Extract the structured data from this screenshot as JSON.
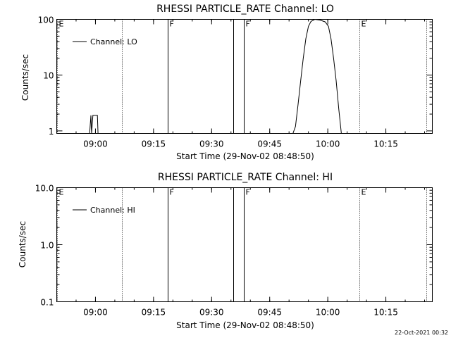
{
  "footer": {
    "timestamp": "22-Oct-2021 00:32"
  },
  "chart_data": [
    {
      "type": "line",
      "title": "RHESSI PARTICLE_RATE Channel: LO",
      "xlabel": "Start Time (29-Nov-02 08:48:50)",
      "ylabel": "Counts/sec",
      "yscale": "log",
      "ylim": [
        0.9,
        100
      ],
      "xlim": [
        "08:50:00",
        "10:27:00"
      ],
      "x_ticks": [
        "09:00",
        "09:15",
        "09:30",
        "09:45",
        "10:00",
        "10:15"
      ],
      "y_ticks": [
        "1",
        "10",
        "100"
      ],
      "legend": {
        "entries": [
          "Channel: LO"
        ],
        "placement": "top-left"
      },
      "markers": [
        {
          "time": "08:50:00",
          "style": "dotted",
          "flag": "E"
        },
        {
          "time": "09:06:45",
          "style": "dotted",
          "flag": ""
        },
        {
          "time": "09:18:45",
          "style": "solid",
          "flag": "F"
        },
        {
          "time": "09:35:30",
          "style": "solid",
          "flag": ""
        },
        {
          "time": "09:38:15",
          "style": "solid",
          "flag": "F"
        },
        {
          "time": "10:08:15",
          "style": "dotted",
          "flag": "E"
        },
        {
          "time": "10:25:30",
          "style": "dotted",
          "flag": ""
        }
      ],
      "segments": [
        [
          [
            "08:58:30",
            0.85
          ],
          [
            "08:58:50",
            1.9
          ],
          [
            "08:59:00",
            0.9
          ],
          [
            "08:59:20",
            1.9
          ],
          [
            "09:00:30",
            1.9
          ],
          [
            "09:00:40",
            0.85
          ]
        ],
        [
          [
            "09:51:00",
            0.85
          ],
          [
            "09:51:40",
            1.2
          ],
          [
            "09:52:20",
            3
          ],
          [
            "09:53:00",
            8
          ],
          [
            "09:53:40",
            20
          ],
          [
            "09:54:20",
            45
          ],
          [
            "09:55:00",
            75
          ],
          [
            "09:55:40",
            92
          ],
          [
            "09:56:40",
            100
          ],
          [
            "09:58:00",
            97
          ],
          [
            "09:59:20",
            90
          ],
          [
            "10:00:10",
            75
          ],
          [
            "10:00:50",
            45
          ],
          [
            "10:01:30",
            20
          ],
          [
            "10:02:10",
            8
          ],
          [
            "10:02:50",
            2.5
          ],
          [
            "10:03:30",
            0.85
          ]
        ]
      ]
    },
    {
      "type": "line",
      "title": "RHESSI PARTICLE_RATE Channel: HI",
      "xlabel": "Start Time (29-Nov-02 08:48:50)",
      "ylabel": "Counts/sec",
      "yscale": "log",
      "ylim": [
        0.1,
        10
      ],
      "xlim": [
        "08:50:00",
        "10:27:00"
      ],
      "x_ticks": [
        "09:00",
        "09:15",
        "09:30",
        "09:45",
        "10:00",
        "10:15"
      ],
      "y_ticks": [
        "0.1",
        "1.0",
        "10.0"
      ],
      "legend": {
        "entries": [
          "Channel: HI"
        ],
        "placement": "top-left"
      },
      "markers": [
        {
          "time": "08:50:00",
          "style": "dotted",
          "flag": "E"
        },
        {
          "time": "09:06:45",
          "style": "dotted",
          "flag": ""
        },
        {
          "time": "09:18:45",
          "style": "solid",
          "flag": "F"
        },
        {
          "time": "09:35:30",
          "style": "solid",
          "flag": ""
        },
        {
          "time": "09:38:15",
          "style": "solid",
          "flag": "F"
        },
        {
          "time": "10:08:15",
          "style": "dotted",
          "flag": "E"
        },
        {
          "time": "10:25:30",
          "style": "dotted",
          "flag": ""
        }
      ],
      "segments": []
    }
  ]
}
